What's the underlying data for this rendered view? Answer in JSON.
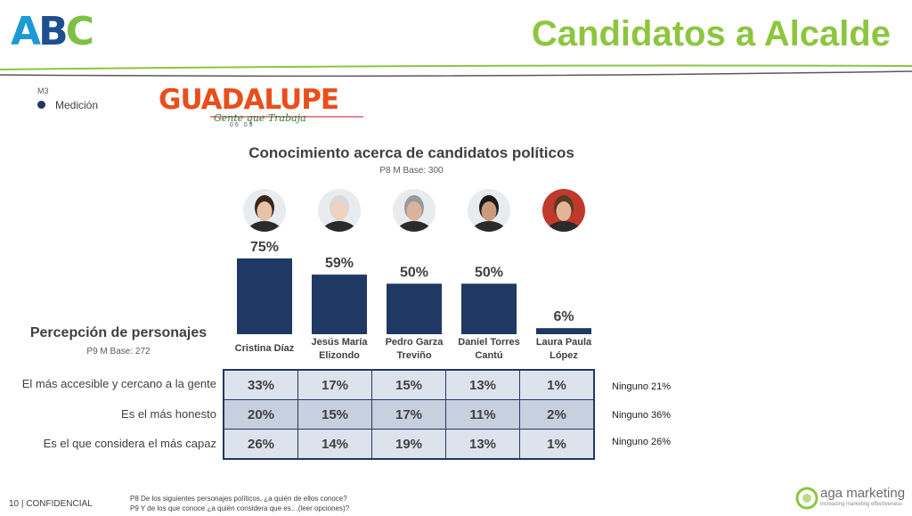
{
  "header": {
    "logo_letters": [
      "A",
      "B",
      "C"
    ],
    "title": "Candidatos a Alcalde",
    "accent_color": "#8cc63f"
  },
  "legend": {
    "series_code": "M3",
    "label": "Medición",
    "color": "#1f3864"
  },
  "guadalupe_logo": {
    "word": "GUADALUPE",
    "tagline": "Gente que Trabaja",
    "years": "06  09"
  },
  "chart_data": {
    "type": "bar",
    "title": "Conocimiento acerca de candidatos políticos",
    "subtitle": "P8 M Base: 300",
    "categories": [
      "Cristina Díaz",
      "Jesús María Elizondo",
      "Pedro Garza Treviño",
      "Daniel Torres Cantú",
      "Laura Paula López"
    ],
    "values": [
      75,
      59,
      50,
      50,
      6
    ],
    "value_labels": [
      "75%",
      "59%",
      "50%",
      "50%",
      "6%"
    ],
    "unit": "%",
    "ylim": [
      0,
      100
    ],
    "bar_color": "#1f3864",
    "grid": false
  },
  "candidates": [
    {
      "name_line1": "Cristina Díaz",
      "name_line2": "",
      "icon": "cristina-diaz-photo-icon"
    },
    {
      "name_line1": "Jesús María",
      "name_line2": "Elizondo",
      "icon": "jesus-maria-elizondo-photo-icon"
    },
    {
      "name_line1": "Pedro Garza",
      "name_line2": "Treviño",
      "icon": "pedro-garza-photo-icon"
    },
    {
      "name_line1": "Daniel Torres",
      "name_line2": "Cantú",
      "icon": "daniel-torres-photo-icon"
    },
    {
      "name_line1": "Laura Paula",
      "name_line2": "López",
      "icon": "laura-paula-photo-icon"
    }
  ],
  "perception": {
    "title": "Percepción de personajes",
    "base": "P9 M Base: 272",
    "rows": [
      {
        "label": "El más accesible y cercano a la gente",
        "values": [
          "33%",
          "17%",
          "15%",
          "13%",
          "1%"
        ],
        "ninguno": "Ninguno 21%"
      },
      {
        "label": "Es el más honesto",
        "values": [
          "20%",
          "15%",
          "17%",
          "11%",
          "2%"
        ],
        "ninguno": "Ninguno 36%"
      },
      {
        "label": "Es el que considera el más capaz",
        "values": [
          "26%",
          "14%",
          "19%",
          "13%",
          "1%"
        ],
        "ninguno": "Ninguno 26%"
      }
    ]
  },
  "footer": {
    "page_number": "10",
    "confidential": "| CONFIDENCIAL",
    "footnote_line1": "P8 De los siguientes personajes políticos, ¿a quién de ellos conoce?",
    "footnote_line2": "P9 Y de los que conoce ¿a quién considera que es…(leer opciones)?",
    "brand": "aga marketing",
    "brand_tagline": "increasing marketing effectiveness"
  }
}
